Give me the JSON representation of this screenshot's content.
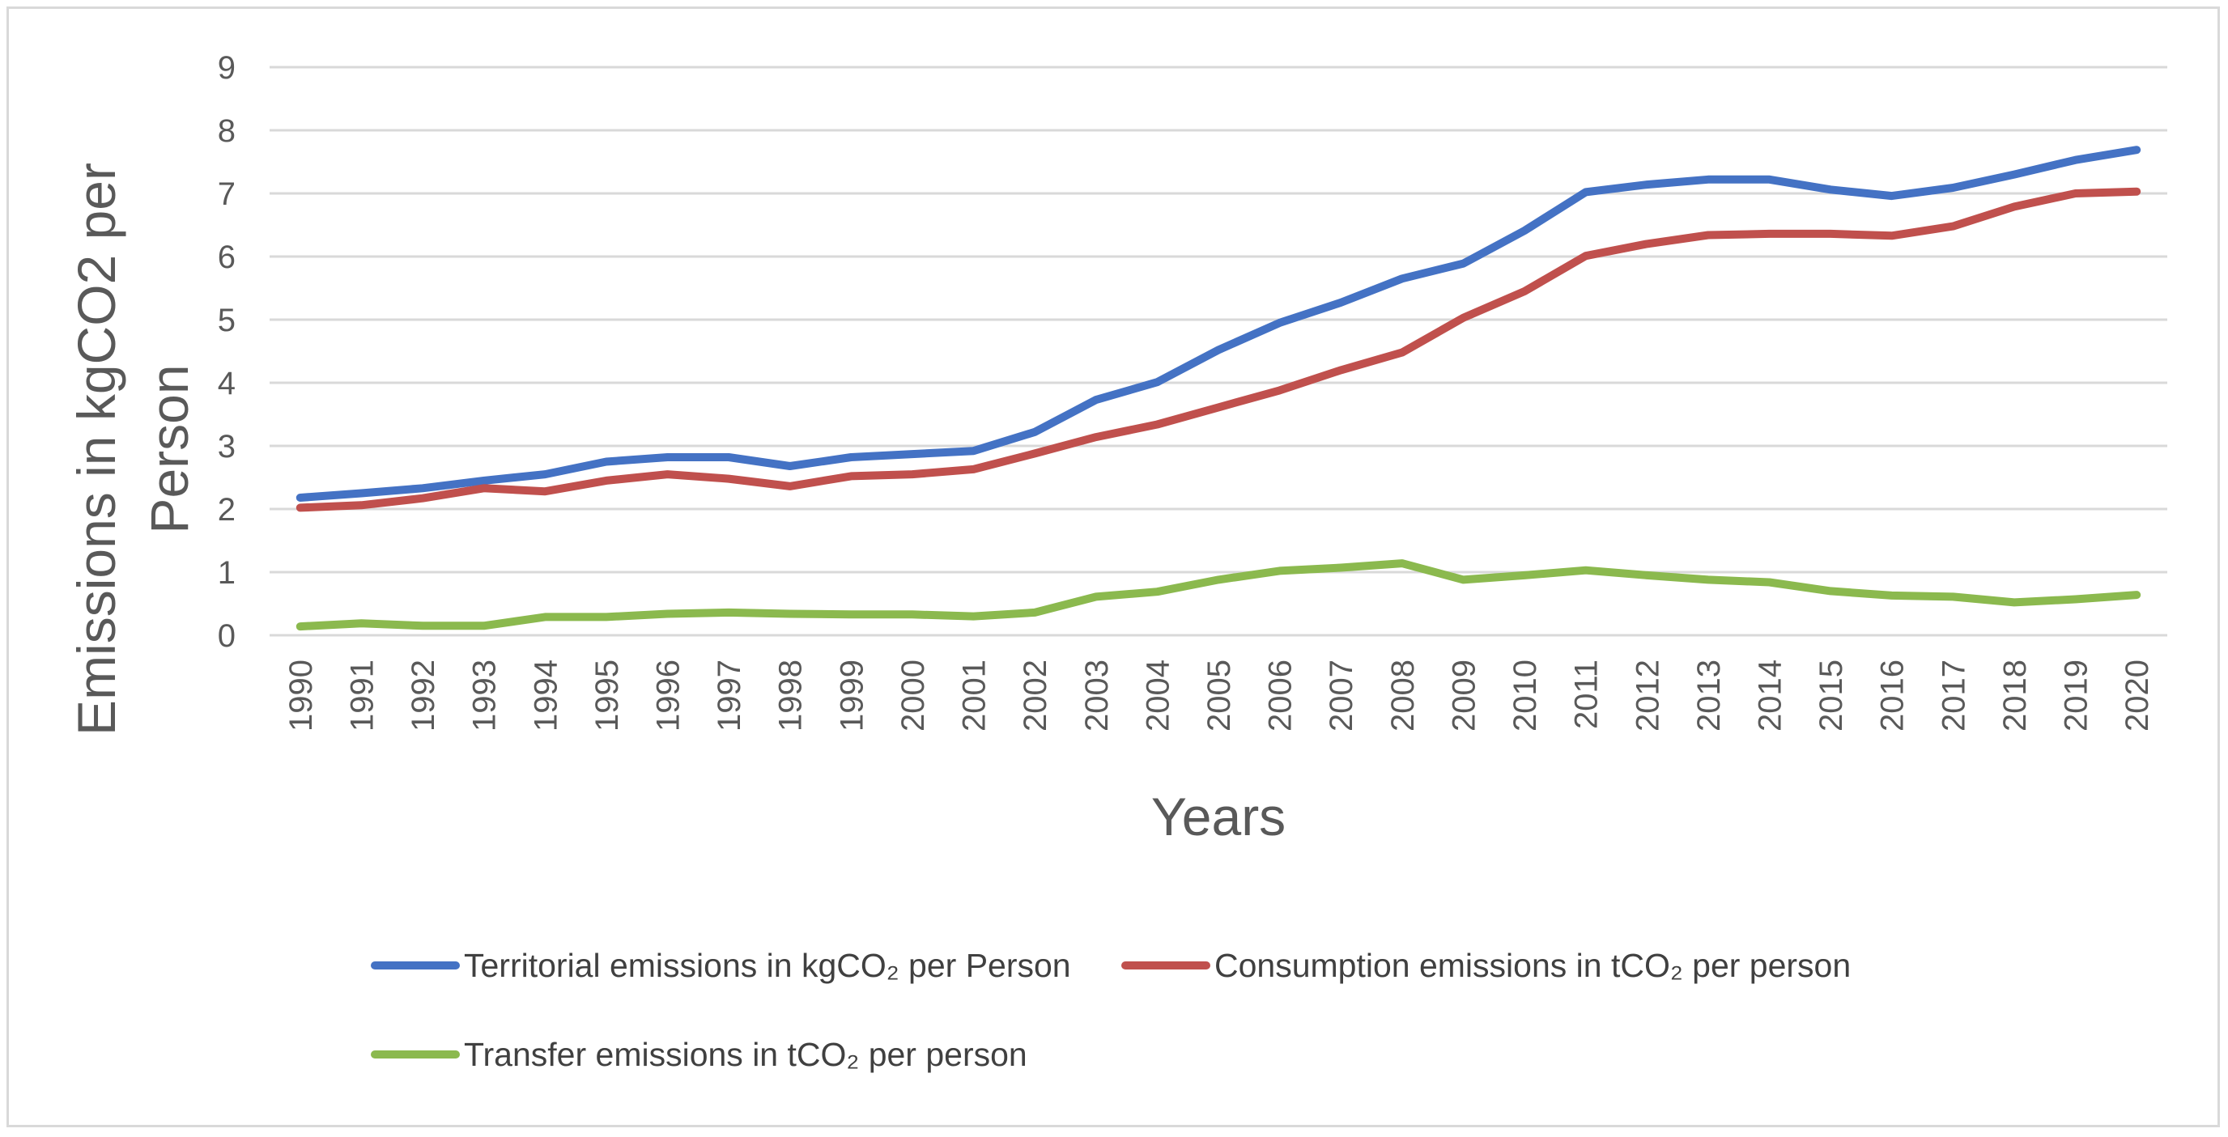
{
  "chart_data": {
    "type": "line",
    "title": "",
    "xlabel": "Years",
    "ylabel_line1": "Emissions in kgCO2 per",
    "ylabel_line2": "Person",
    "ylim": [
      0,
      9
    ],
    "yticks": [
      0,
      1,
      2,
      3,
      4,
      5,
      6,
      7,
      8,
      9
    ],
    "grid": true,
    "legend_position": "bottom",
    "categories": [
      "1990",
      "1991",
      "1992",
      "1993",
      "1994",
      "1995",
      "1996",
      "1997",
      "1998",
      "1999",
      "2000",
      "2001",
      "2002",
      "2003",
      "2004",
      "2005",
      "2006",
      "2007",
      "2008",
      "2009",
      "2010",
      "2011",
      "2012",
      "2013",
      "2014",
      "2015",
      "2016",
      "2017",
      "2018",
      "2019",
      "2020"
    ],
    "series": [
      {
        "name": "Territorial emissions in kgCO₂ per Person",
        "color": "#4472c4",
        "values": [
          2.18,
          2.25,
          2.33,
          2.45,
          2.55,
          2.75,
          2.82,
          2.82,
          2.68,
          2.82,
          2.87,
          2.92,
          3.22,
          3.73,
          4.01,
          4.52,
          4.95,
          5.27,
          5.65,
          5.89,
          6.41,
          7.02,
          7.14,
          7.22,
          7.22,
          7.06,
          6.96,
          7.09,
          7.3,
          7.53,
          7.69
        ]
      },
      {
        "name": "Consumption emissions in tCO₂ per person",
        "color": "#c0504d",
        "values": [
          2.02,
          2.06,
          2.17,
          2.33,
          2.28,
          2.45,
          2.55,
          2.48,
          2.36,
          2.52,
          2.55,
          2.63,
          2.88,
          3.14,
          3.34,
          3.61,
          3.88,
          4.2,
          4.48,
          5.03,
          5.45,
          6.01,
          6.2,
          6.34,
          6.36,
          6.36,
          6.33,
          6.48,
          6.79,
          7.0,
          7.03
        ]
      },
      {
        "name": "Transfer emissions in tCO₂ per person",
        "color": "#8bb94e",
        "values": [
          0.14,
          0.19,
          0.15,
          0.15,
          0.29,
          0.29,
          0.34,
          0.36,
          0.34,
          0.33,
          0.33,
          0.3,
          0.36,
          0.61,
          0.69,
          0.88,
          1.02,
          1.07,
          1.14,
          0.88,
          0.95,
          1.03,
          0.95,
          0.88,
          0.84,
          0.7,
          0.63,
          0.61,
          0.52,
          0.57,
          0.64
        ]
      }
    ]
  },
  "colors": {
    "gridline": "#d9d9d9",
    "text": "#595959",
    "frame": "#d9d9d9"
  }
}
